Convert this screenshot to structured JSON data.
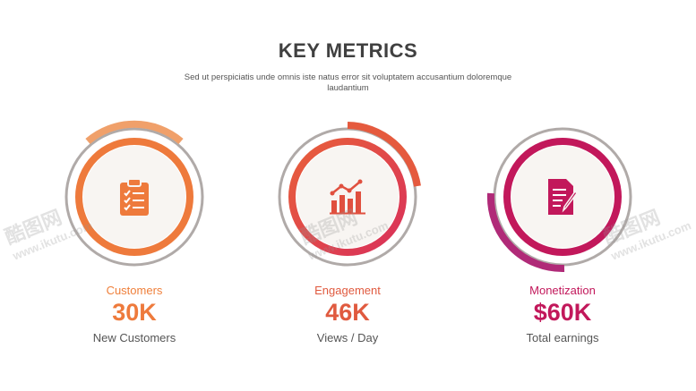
{
  "header": {
    "title": "KEY METRICS",
    "subtitle": "Sed ut perspiciatis unde omnis iste natus error sit voluptatem accusantium doloremque laudantium"
  },
  "metrics": [
    {
      "label": "Customers",
      "value": "30K",
      "description": "New Customers",
      "icon": "clipboard-checklist-icon",
      "color": "#ef7f3a",
      "color2": "#e8683a"
    },
    {
      "label": "Engagement",
      "value": "46K",
      "description": "Views / Day",
      "icon": "bar-chart-trend-icon",
      "color": "#e05a3f",
      "color2": "#d93a5a"
    },
    {
      "label": "Monetization",
      "value": "$60K",
      "description": "Total earnings",
      "icon": "document-pen-icon",
      "color": "#c2185b",
      "color2": "#a5287c"
    }
  ],
  "watermark": {
    "chars": "酷图网",
    "url": "www.ikutu.com"
  },
  "colors": {
    "ring_gray": "#b0aaa8",
    "inner_fill": "#f8f5f2"
  }
}
